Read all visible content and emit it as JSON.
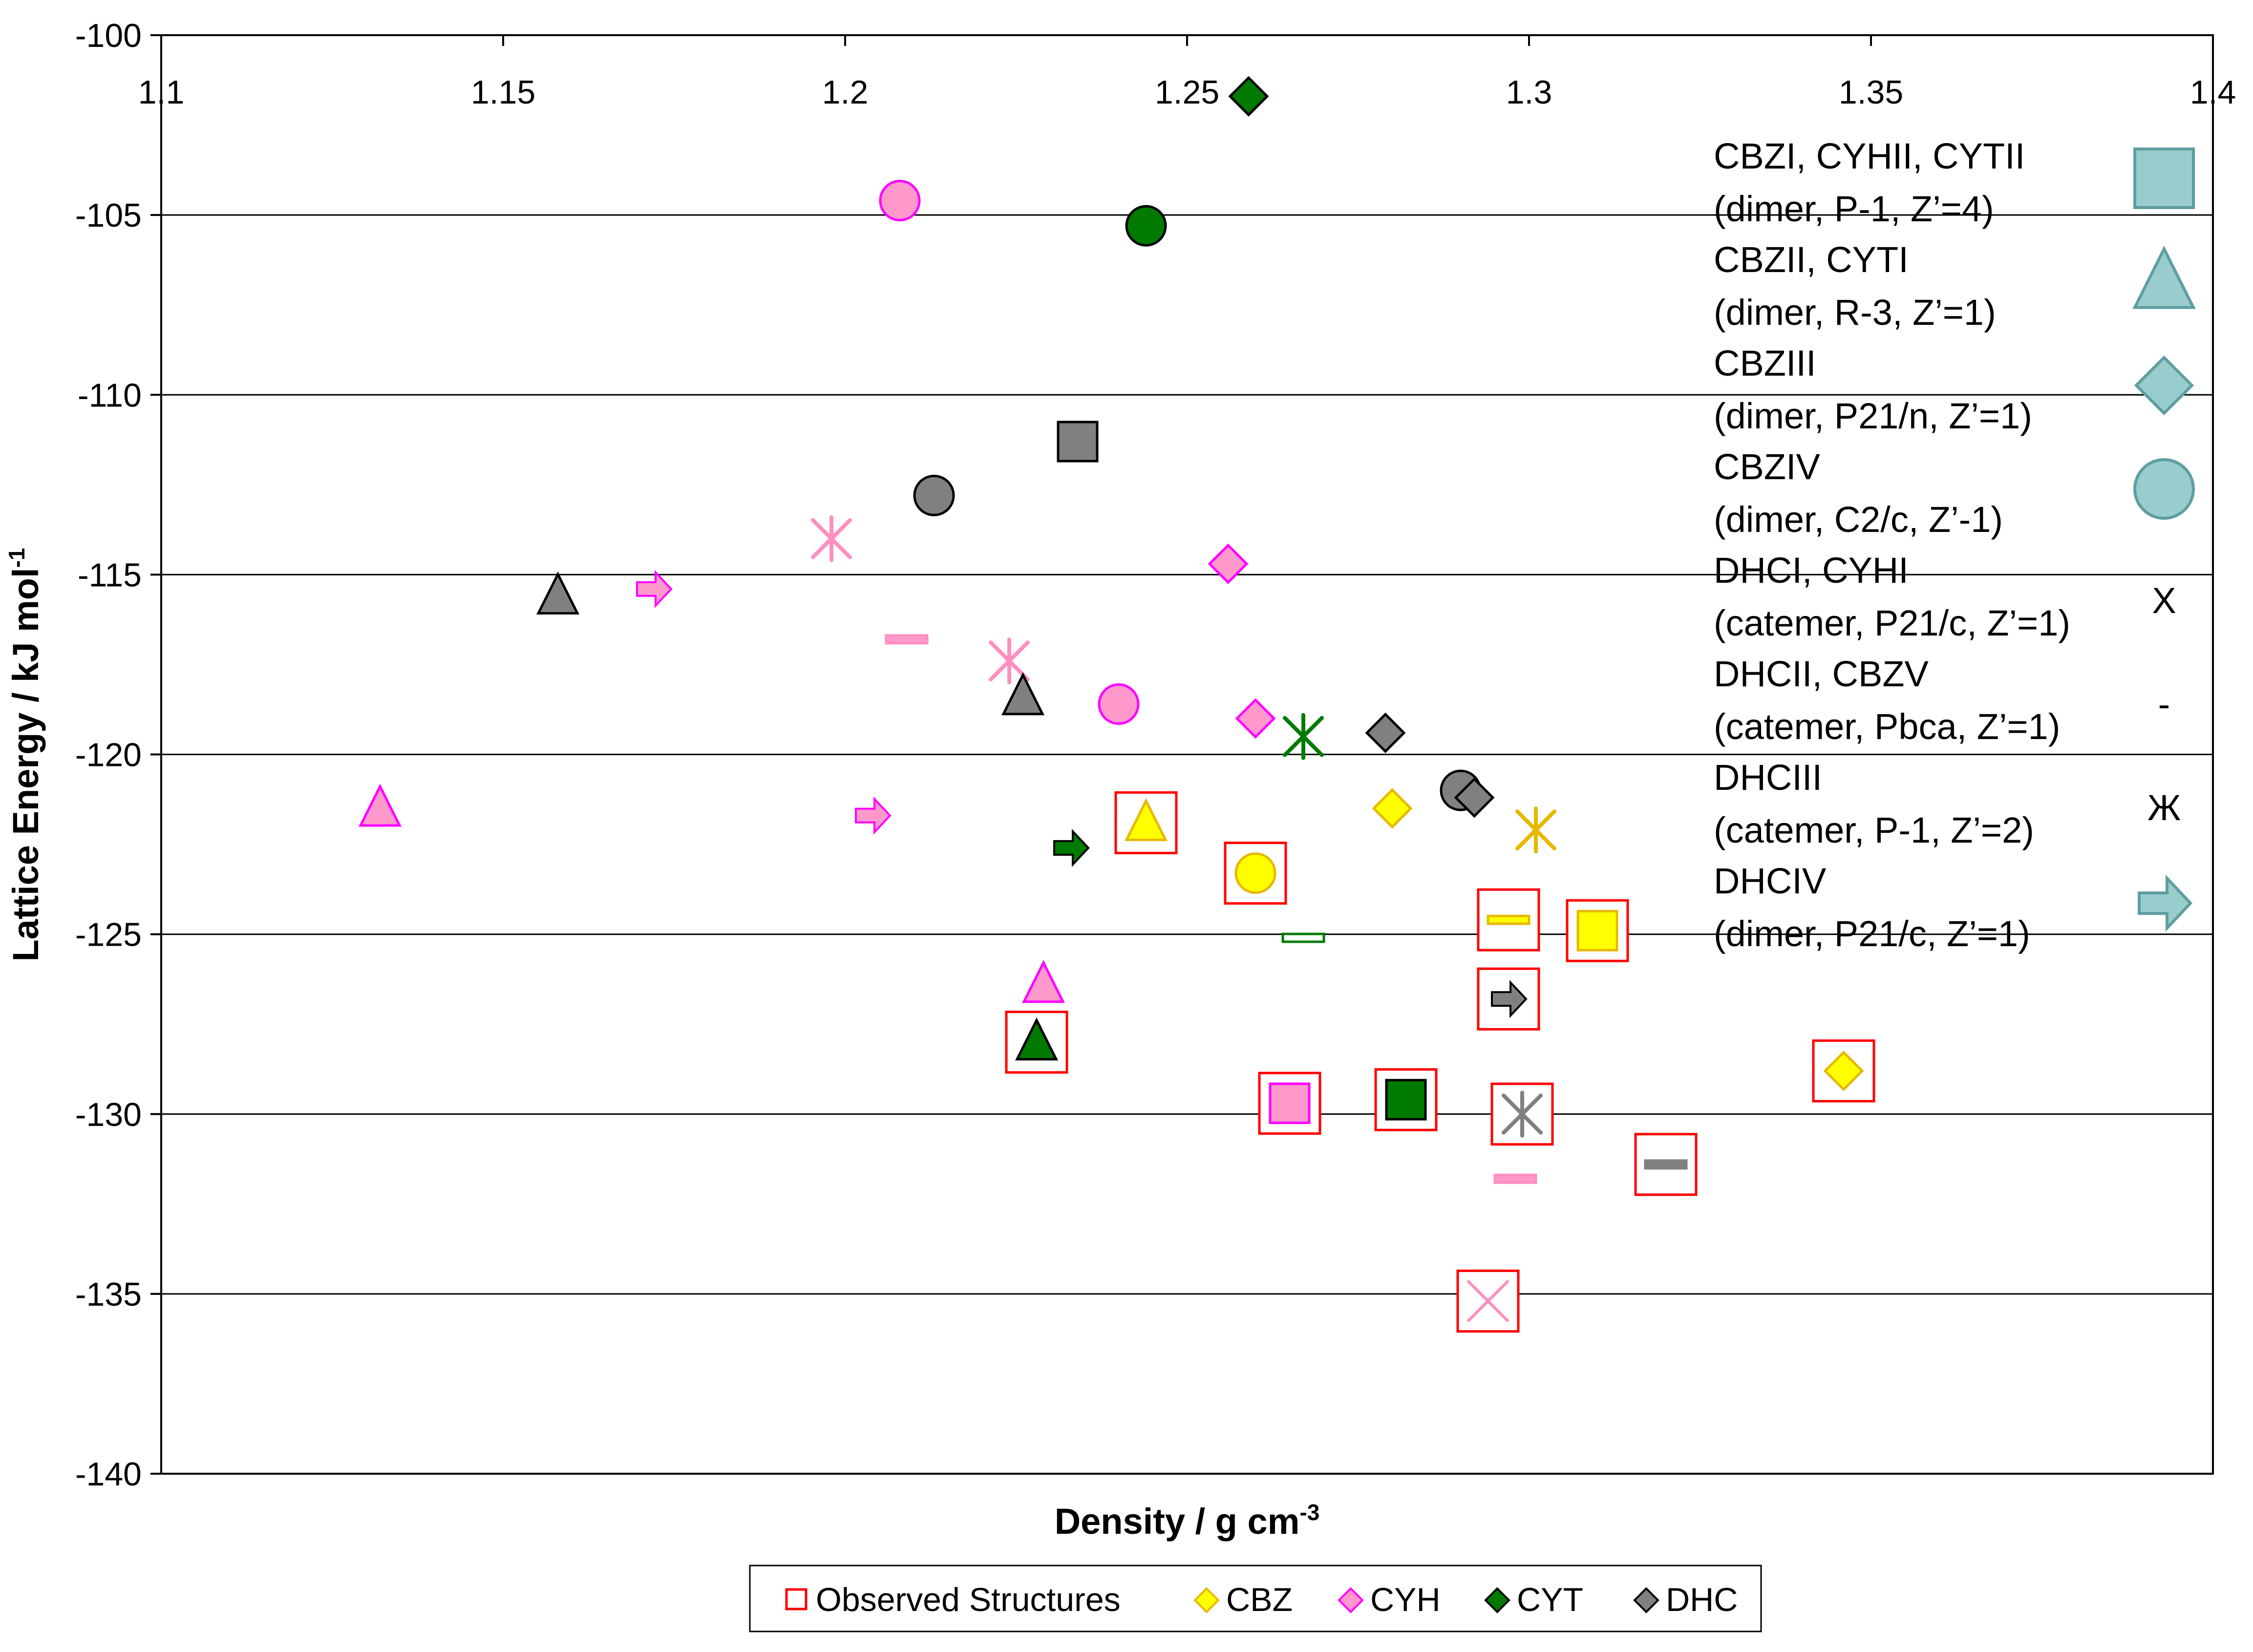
{
  "chart_data": {
    "type": "scatter",
    "title": "",
    "xlabel": "Density / g cm",
    "xlabel_sup": "-3",
    "ylabel": "Lattice Energy / kJ mol",
    "ylabel_sup": "-1",
    "xlim": [
      1.1,
      1.4
    ],
    "ylim": [
      -140,
      -100
    ],
    "x_axis_position": "top",
    "x_ticks": [
      "1.1",
      "1.15",
      "1.2",
      "1.25",
      "1.3",
      "1.35",
      "1.4"
    ],
    "y_ticks": [
      "-100",
      "-105",
      "-110",
      "-115",
      "-120",
      "-125",
      "-130",
      "-135",
      "-140"
    ],
    "grid": "horizontal",
    "colors": {
      "CBZ": "#ffff00",
      "CBZ_edge": "#e6b800",
      "CYH": "#ff99cc",
      "CYH_edge": "#ff00ff",
      "CYH_star": "#ff8fc1",
      "CYT": "#007a00",
      "DHC": "#808080",
      "observed": "#ff0000",
      "key": "#99cccc"
    },
    "series": [
      {
        "name": "CBZ",
        "points": [
          {
            "x": 1.244,
            "y": -121.9,
            "shape": "triangle",
            "observed": true
          },
          {
            "x": 1.26,
            "y": -123.3,
            "shape": "circle",
            "observed": true
          },
          {
            "x": 1.28,
            "y": -121.5,
            "shape": "diamond",
            "observed": false
          },
          {
            "x": 1.301,
            "y": -122.1,
            "shape": "star",
            "observed": false
          },
          {
            "x": 1.297,
            "y": -124.6,
            "shape": "dash",
            "observed": true
          },
          {
            "x": 1.31,
            "y": -124.9,
            "shape": "square",
            "observed": true
          },
          {
            "x": 1.346,
            "y": -128.8,
            "shape": "diamond",
            "observed": true
          }
        ]
      },
      {
        "name": "CYH",
        "points": [
          {
            "x": 1.208,
            "y": -104.6,
            "shape": "circle",
            "observed": false
          },
          {
            "x": 1.198,
            "y": -114.0,
            "shape": "star",
            "observed": false
          },
          {
            "x": 1.172,
            "y": -115.4,
            "shape": "arrow",
            "observed": false
          },
          {
            "x": 1.209,
            "y": -116.8,
            "shape": "dash",
            "observed": false
          },
          {
            "x": 1.224,
            "y": -117.4,
            "shape": "star",
            "observed": false
          },
          {
            "x": 1.24,
            "y": -118.6,
            "shape": "circle",
            "observed": false
          },
          {
            "x": 1.256,
            "y": -114.7,
            "shape": "diamond",
            "observed": false
          },
          {
            "x": 1.26,
            "y": -119.0,
            "shape": "diamond",
            "observed": false
          },
          {
            "x": 1.132,
            "y": -121.5,
            "shape": "triangle",
            "observed": false
          },
          {
            "x": 1.204,
            "y": -121.7,
            "shape": "arrow",
            "observed": false
          },
          {
            "x": 1.229,
            "y": -126.4,
            "shape": "triangle",
            "observed": false
          },
          {
            "x": 1.265,
            "y": -129.7,
            "shape": "square",
            "observed": true
          },
          {
            "x": 1.298,
            "y": -131.8,
            "shape": "dash",
            "observed": false
          },
          {
            "x": 1.294,
            "y": -135.2,
            "shape": "x",
            "observed": true
          }
        ]
      },
      {
        "name": "CYT",
        "points": [
          {
            "x": 1.259,
            "y": -101.7,
            "shape": "diamond",
            "observed": false
          },
          {
            "x": 1.244,
            "y": -105.3,
            "shape": "circle",
            "observed": false
          },
          {
            "x": 1.267,
            "y": -119.5,
            "shape": "star",
            "observed": false
          },
          {
            "x": 1.233,
            "y": -122.6,
            "shape": "arrow",
            "observed": false
          },
          {
            "x": 1.267,
            "y": -125.1,
            "shape": "dash",
            "observed": false
          },
          {
            "x": 1.228,
            "y": -128.0,
            "shape": "triangle",
            "observed": true
          },
          {
            "x": 1.282,
            "y": -129.6,
            "shape": "square",
            "observed": true
          }
        ]
      },
      {
        "name": "DHC",
        "points": [
          {
            "x": 1.234,
            "y": -111.3,
            "shape": "square",
            "observed": false
          },
          {
            "x": 1.213,
            "y": -112.8,
            "shape": "circle",
            "observed": false
          },
          {
            "x": 1.158,
            "y": -115.6,
            "shape": "triangle",
            "observed": false
          },
          {
            "x": 1.226,
            "y": -118.4,
            "shape": "triangle",
            "observed": false
          },
          {
            "x": 1.279,
            "y": -119.4,
            "shape": "diamond",
            "observed": false
          },
          {
            "x": 1.29,
            "y": -121.0,
            "shape": "circle",
            "observed": false
          },
          {
            "x": 1.292,
            "y": -121.2,
            "shape": "diamond",
            "observed": false
          },
          {
            "x": 1.297,
            "y": -126.8,
            "shape": "arrow",
            "observed": true
          },
          {
            "x": 1.299,
            "y": -130.0,
            "shape": "star",
            "observed": true
          },
          {
            "x": 1.32,
            "y": -131.4,
            "shape": "dash",
            "observed": true
          }
        ]
      }
    ],
    "shape_key": [
      {
        "label": "CBZI, CYHII, CYTII",
        "detail": "(dimer, P-1, Z’=4)",
        "shape": "square"
      },
      {
        "label": "CBZII, CYTI",
        "detail": "(dimer, R-3, Z’=1)",
        "shape": "triangle"
      },
      {
        "label": "CBZIII",
        "detail": "(dimer, P21/n, Z’=1)",
        "shape": "diamond"
      },
      {
        "label": "CBZIV",
        "detail": "(dimer, C2/c, Z’-1)",
        "shape": "circle"
      },
      {
        "label": "DHCI, CYHI",
        "detail": "(catemer, P21/c, Z’=1)",
        "shape": "x",
        "glyph": "X"
      },
      {
        "label": "DHCII, CBZV",
        "detail": "(catemer, Pbca, Z’=1)",
        "shape": "dash",
        "glyph": "-"
      },
      {
        "label": "DHCIII",
        "detail": "(catemer, P-1, Z’=2)",
        "shape": "star",
        "glyph": "Ж"
      },
      {
        "label": "DHCIV",
        "detail": "(dimer, P21/c, Z’=1)",
        "shape": "arrow"
      }
    ],
    "legend": {
      "position": "bottom",
      "entries": [
        {
          "label": "Observed Structures",
          "marker": "open-square",
          "color": "#ff0000"
        },
        {
          "label": "CBZ",
          "marker": "diamond",
          "color": "#ffff00"
        },
        {
          "label": "CYH",
          "marker": "diamond",
          "color": "#ff99cc"
        },
        {
          "label": "CYT",
          "marker": "diamond",
          "color": "#007a00"
        },
        {
          "label": "DHC",
          "marker": "diamond",
          "color": "#808080"
        }
      ]
    }
  }
}
